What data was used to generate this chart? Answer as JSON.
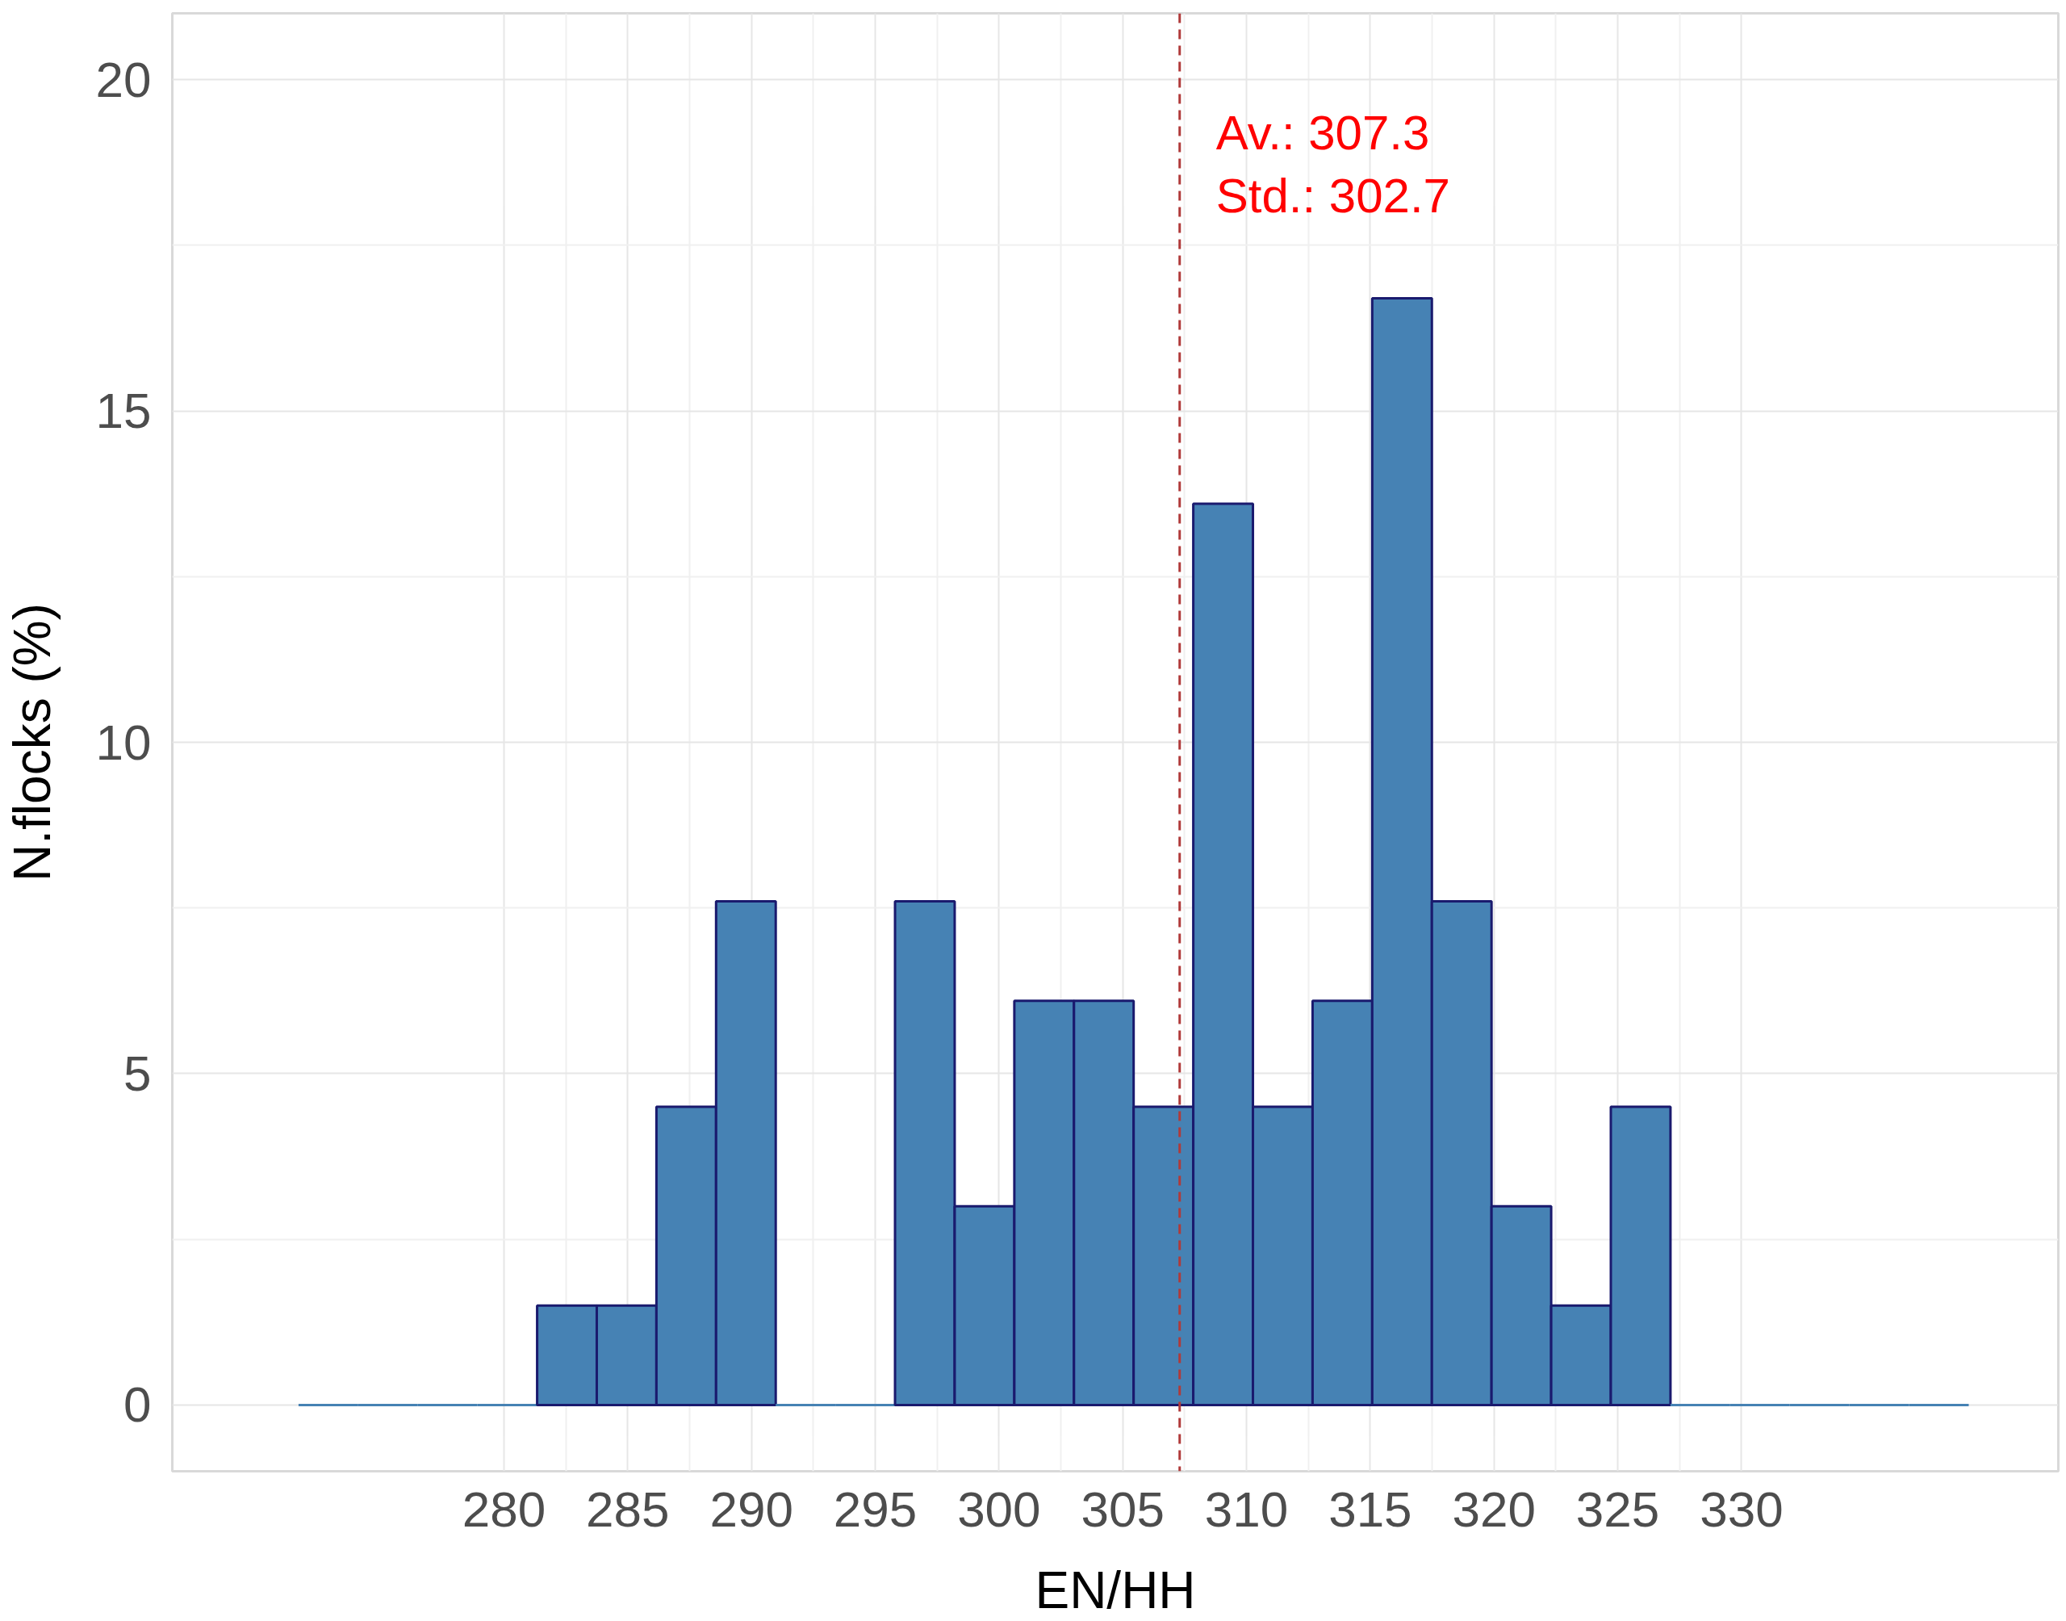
{
  "chart_data": {
    "type": "histogram",
    "xlabel": "EN/HH",
    "ylabel": "N.flocks (%)",
    "bins": [
      271.7,
      274.11,
      276.52,
      278.93,
      281.34,
      283.75,
      286.16,
      288.57,
      290.98,
      293.39,
      295.8,
      298.21,
      300.62,
      303.03,
      305.44,
      307.85,
      310.26,
      312.67,
      315.08,
      317.49,
      319.9,
      322.31,
      324.72,
      327.13,
      329.54,
      331.95,
      334.36,
      336.77,
      339.18
    ],
    "values": [
      0,
      0,
      0,
      0,
      1.5,
      1.5,
      4.5,
      7.6,
      0,
      0,
      7.6,
      3.0,
      6.1,
      6.1,
      4.5,
      13.6,
      4.5,
      6.1,
      16.7,
      7.6,
      3.0,
      1.5,
      4.5,
      0,
      0,
      0,
      0,
      0
    ],
    "color": "#4682b4",
    "xlim": [
      266.6,
      342.8
    ],
    "ylim": [
      -1,
      21
    ],
    "xticks": [
      280,
      285,
      290,
      295,
      300,
      305,
      310,
      315,
      320,
      325,
      330
    ],
    "yticks": [
      0,
      5,
      10,
      15,
      20
    ],
    "grid": true,
    "ref_lines": [
      {
        "axis": "x",
        "value": 307.3,
        "color": "#b03a3a",
        "line_style": "dashed"
      }
    ],
    "annotations": [
      "Av.:   307.3",
      "Std.: 302.7"
    ]
  }
}
